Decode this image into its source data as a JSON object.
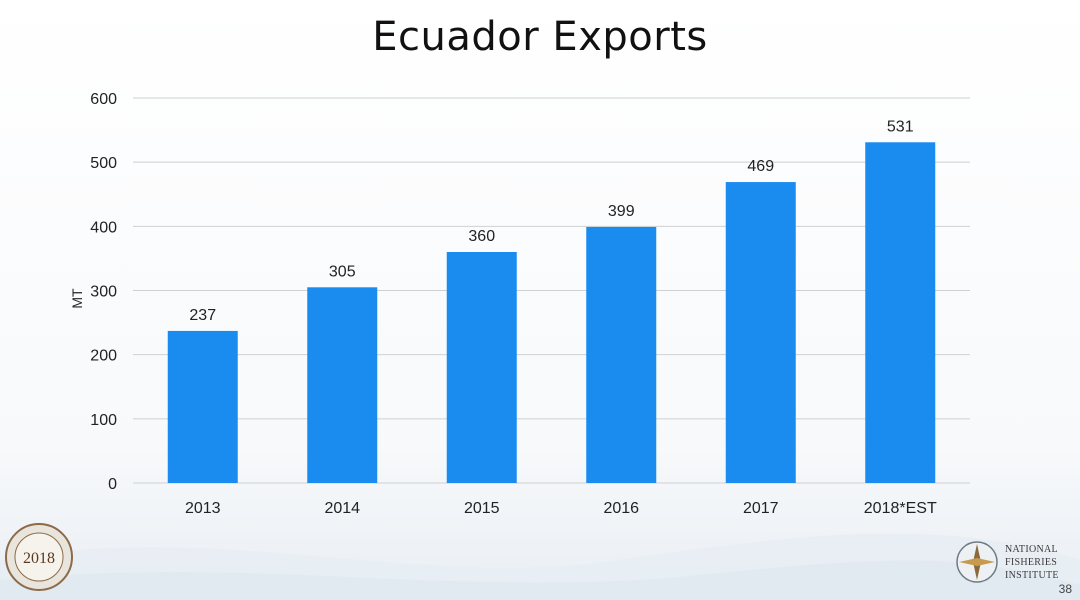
{
  "chart_data": {
    "type": "bar",
    "title": "Ecuador Exports",
    "categories": [
      "2013",
      "2014",
      "2015",
      "2016",
      "2017",
      "2018*EST"
    ],
    "values": [
      237,
      305,
      360,
      399,
      469,
      531
    ],
    "ylabel": "MT",
    "ylim": [
      0,
      600
    ],
    "yticks": [
      0,
      100,
      200,
      300,
      400,
      500,
      600
    ],
    "grid": true,
    "bar_color": "#1a8cf0"
  },
  "slide": {
    "page_number": "38",
    "left_logo_text": "2018",
    "right_logo_lines": [
      "NATIONAL",
      "FISHERIES",
      "INSTITUTE"
    ]
  }
}
